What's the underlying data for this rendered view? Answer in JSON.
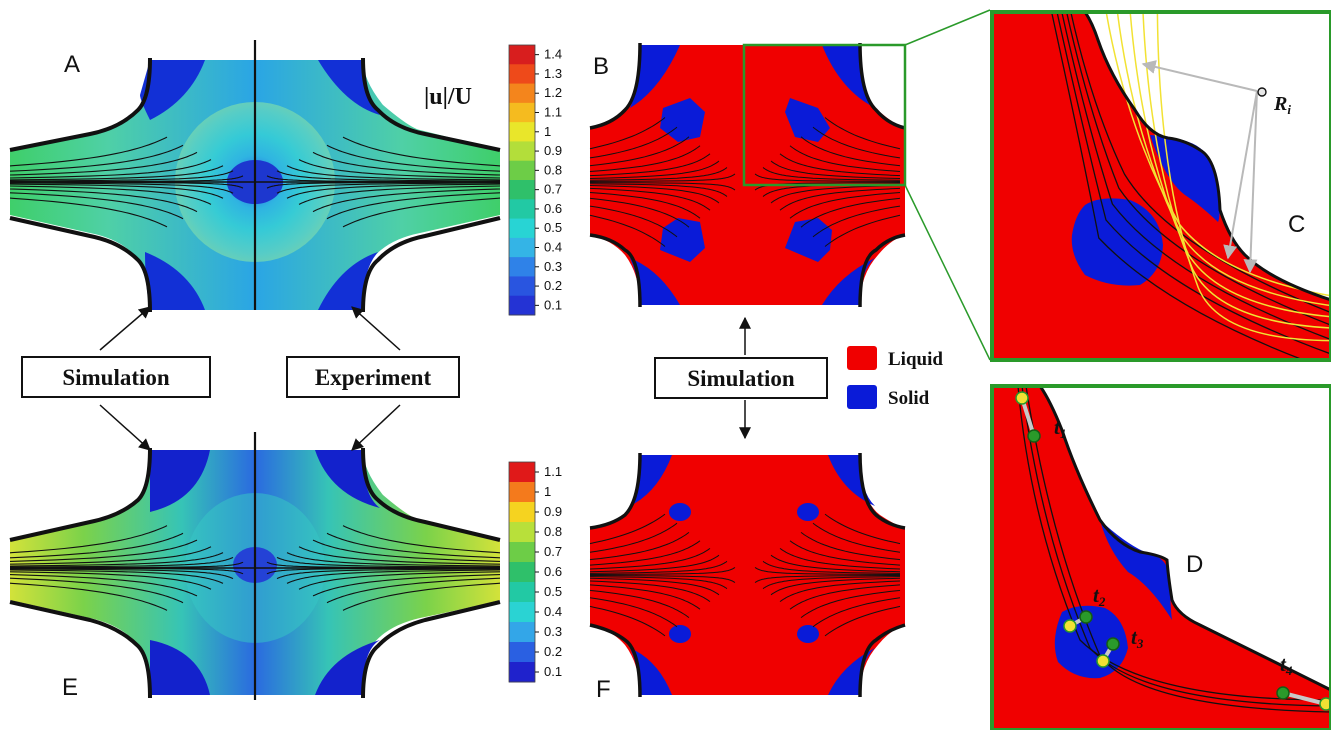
{
  "panels": {
    "a": "A",
    "b": "B",
    "c": "C",
    "d": "D",
    "e": "E",
    "f": "F"
  },
  "colorbar_title": "|u|/U",
  "colorbar_top": {
    "ticks": [
      "1.4",
      "1.3",
      "1.2",
      "1.1",
      "1",
      "0.9",
      "0.8",
      "0.7",
      "0.6",
      "0.5",
      "0.4",
      "0.3",
      "0.2",
      "0.1"
    ],
    "colors": [
      "#d81e1e",
      "#ee4a1a",
      "#f4851c",
      "#f5bb1f",
      "#e9e62a",
      "#b3de3a",
      "#6dcd47",
      "#2fc06a",
      "#22c9a4",
      "#28d4d4",
      "#34b4e6",
      "#2f82e8",
      "#2955e0",
      "#2433d4"
    ]
  },
  "colorbar_bottom": {
    "ticks": [
      "1.1",
      "1",
      "0.9",
      "0.8",
      "0.7",
      "0.6",
      "0.5",
      "0.4",
      "0.3",
      "0.2",
      "0.1"
    ],
    "colors": [
      "#e01919",
      "#f47a1c",
      "#f5d320",
      "#b8e03a",
      "#6dcd47",
      "#2fc06a",
      "#22c9a4",
      "#2ad3d3",
      "#33a6e8",
      "#2a60e2",
      "#1f22cc"
    ]
  },
  "labels": {
    "simulation_left": "Simulation",
    "experiment": "Experiment",
    "simulation_center": "Simulation"
  },
  "legend": {
    "liquid": "Liquid",
    "solid": "Solid",
    "liquid_color": "#f00000",
    "solid_color": "#0a1bd8"
  },
  "annotations": {
    "r_symbol": "R",
    "r_sub": "i",
    "t1": "t",
    "t1_sub": "1",
    "t2": "t",
    "t2_sub": "2",
    "t3": "t",
    "t3_sub": "3",
    "t4": "t",
    "t4_sub": "4"
  },
  "colors": {
    "liquid_red": "#f00000",
    "solid_blue": "#0a1bd8",
    "frame_green": "#2a9a2a",
    "streamline": "#111111",
    "circle_yellow": "#f2e233"
  }
}
